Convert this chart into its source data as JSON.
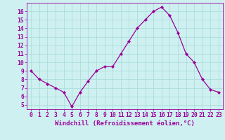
{
  "x": [
    0,
    1,
    2,
    3,
    4,
    5,
    6,
    7,
    8,
    9,
    10,
    11,
    12,
    13,
    14,
    15,
    16,
    17,
    18,
    19,
    20,
    21,
    22,
    23
  ],
  "y": [
    9.0,
    8.0,
    7.5,
    7.0,
    6.5,
    4.8,
    6.5,
    7.8,
    9.0,
    9.5,
    9.5,
    11.0,
    12.5,
    14.0,
    15.0,
    16.0,
    16.5,
    15.5,
    13.5,
    11.0,
    10.0,
    8.0,
    6.8,
    6.5
  ],
  "line_color": "#990099",
  "marker": "D",
  "marker_size": 2.2,
  "bg_color": "#cff0f0",
  "grid_color": "#aadddd",
  "xlabel": "Windchill (Refroidissement éolien,°C)",
  "xlim": [
    -0.5,
    23.5
  ],
  "ylim": [
    4.5,
    17.0
  ],
  "yticks": [
    5,
    6,
    7,
    8,
    9,
    10,
    11,
    12,
    13,
    14,
    15,
    16
  ],
  "xtick_labels": [
    "0",
    "1",
    "2",
    "3",
    "4",
    "5",
    "6",
    "7",
    "8",
    "9",
    "10",
    "11",
    "12",
    "13",
    "14",
    "15",
    "16",
    "17",
    "18",
    "19",
    "20",
    "21",
    "22",
    "23"
  ],
  "tick_color": "#990099",
  "label_color": "#990099",
  "xlabel_fontsize": 6.5,
  "tick_fontsize": 5.8,
  "linewidth": 0.9
}
